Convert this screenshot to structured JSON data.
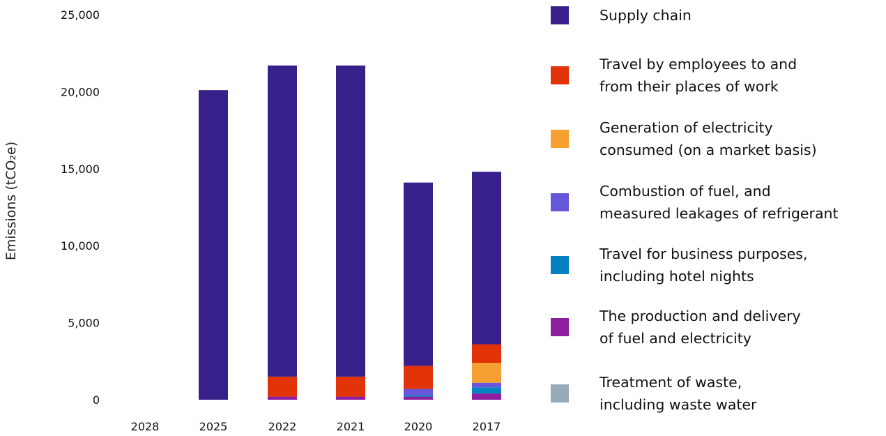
{
  "chart_data": {
    "type": "bar",
    "stacked": true,
    "ylabel": "Emissions (tCO₂e)",
    "ylim": [
      0,
      25000
    ],
    "yticks": [
      0,
      5000,
      10000,
      15000,
      20000,
      25000
    ],
    "ytick_labels": [
      "0",
      "5,000",
      "10,000",
      "15,000",
      "20,000",
      "25,000"
    ],
    "categories": [
      "2028",
      "2025",
      "2022",
      "2021",
      "2020",
      "2017"
    ],
    "series": [
      {
        "name": "Treatment of waste, including waste water",
        "color": "#98abb8",
        "values": [
          0,
          0,
          0,
          0,
          0,
          0
        ]
      },
      {
        "name": "The production and delivery of fuel and electricity",
        "color": "#8e1fa0",
        "values": [
          0,
          0,
          200,
          200,
          200,
          400
        ]
      },
      {
        "name": "Travel for business purposes, including hotel nights",
        "color": "#0580c0",
        "values": [
          0,
          0,
          0,
          0,
          100,
          400
        ]
      },
      {
        "name": "Combustion of fuel, and measured leakages of refrigerant",
        "color": "#6656d9",
        "values": [
          0,
          0,
          0,
          0,
          400,
          300
        ]
      },
      {
        "name": "Generation of electricity consumed (on a market basis)",
        "color": "#f5a030",
        "values": [
          0,
          0,
          0,
          0,
          0,
          1300
        ]
      },
      {
        "name": "Travel by employees to and from their places of work",
        "color": "#e23208",
        "values": [
          0,
          0,
          1300,
          1300,
          1500,
          1200
        ]
      },
      {
        "name": "Supply chain",
        "color": "#37208a",
        "values": [
          0,
          20100,
          20200,
          20200,
          11900,
          11200
        ]
      }
    ],
    "legend_placement": "right",
    "grid": false
  },
  "legend": [
    {
      "color": "#37208a",
      "lines": [
        "Supply chain"
      ]
    },
    {
      "color": "#e23208",
      "lines": [
        "Travel by employees to and",
        "from their places of work"
      ]
    },
    {
      "color": "#f5a030",
      "lines": [
        "Generation of electricity",
        "consumed (on a market basis)"
      ]
    },
    {
      "color": "#6656d9",
      "lines": [
        "Combustion of fuel, and",
        "measured leakages of refrigerant"
      ]
    },
    {
      "color": "#0580c0",
      "lines": [
        "Travel for business purposes,",
        "including hotel nights"
      ]
    },
    {
      "color": "#8e1fa0",
      "lines": [
        "The production and delivery",
        "of fuel and electricity"
      ]
    },
    {
      "color": "#98abb8",
      "lines": [
        "Treatment of waste,",
        "including waste water"
      ]
    }
  ]
}
